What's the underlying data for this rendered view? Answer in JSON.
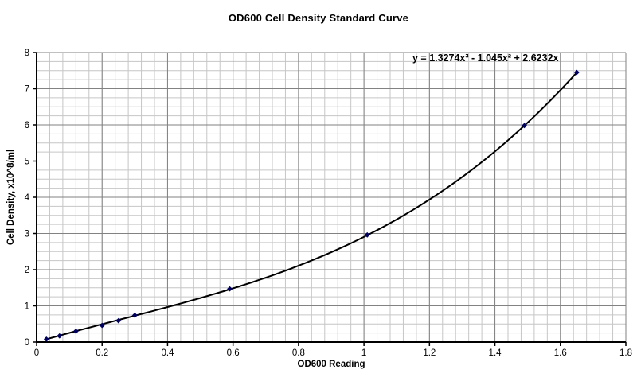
{
  "chart_data": {
    "type": "scatter",
    "title": "OD600 Cell Density Standard Curve",
    "xlabel": "OD600 Reading",
    "ylabel": "Cell Density, x10^8/ml",
    "xlim": [
      0,
      1.8
    ],
    "ylim": [
      0,
      8
    ],
    "x_major_step": 0.2,
    "x_minor_step": 0.04,
    "y_major_step": 1,
    "y_minor_step": 0.25,
    "x_tick_labels": [
      "0",
      "0.2",
      "0.4",
      "0.6",
      "0.8",
      "1",
      "1.2",
      "1.4",
      "1.6",
      "1.8"
    ],
    "y_tick_labels": [
      "0",
      "1",
      "2",
      "3",
      "4",
      "5",
      "6",
      "7",
      "8"
    ],
    "grid": true,
    "legend": "none",
    "points": [
      [
        0.03,
        0.08
      ],
      [
        0.07,
        0.17
      ],
      [
        0.12,
        0.3
      ],
      [
        0.2,
        0.46
      ],
      [
        0.25,
        0.59
      ],
      [
        0.3,
        0.74
      ],
      [
        0.59,
        1.47
      ],
      [
        1.01,
        2.96
      ],
      [
        1.49,
        5.98
      ],
      [
        1.65,
        7.45
      ]
    ],
    "trendline": {
      "equation_label": "y = 1.3274x³ - 1.045x² + 2.6232x",
      "coefficients": {
        "x3": 1.3274,
        "x2": -1.045,
        "x1": 2.6232,
        "x0": 0
      },
      "x_range": [
        0.03,
        1.65
      ]
    },
    "colors": {
      "background": "#ffffff",
      "curve": "#000000",
      "marker": "#000060",
      "grid_minor": "#c6c6c6",
      "grid_major": "#828282",
      "axis": "#000000",
      "text": "#000000"
    }
  }
}
